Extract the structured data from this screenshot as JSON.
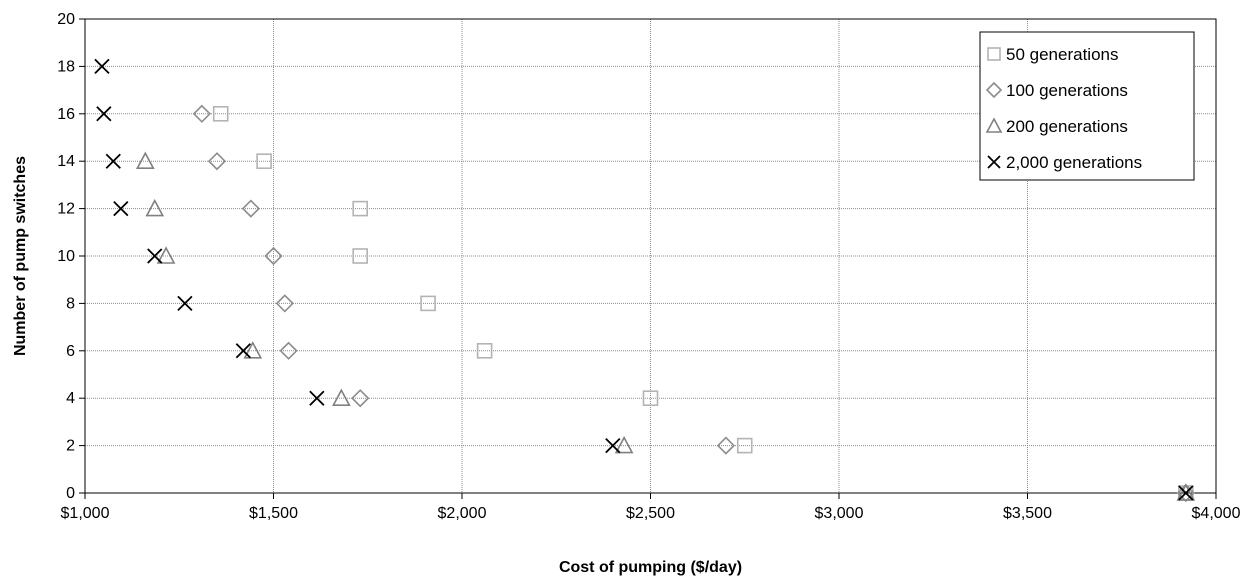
{
  "chart_data": {
    "type": "scatter",
    "xlabel": "Cost of pumping ($/day)",
    "ylabel": "Number of pump switches",
    "xlim": [
      1000,
      4000
    ],
    "ylim": [
      0,
      20
    ],
    "x_ticks": [
      1000,
      1500,
      2000,
      2500,
      3000,
      3500,
      4000
    ],
    "x_tick_labels": [
      "$1,000",
      "$1,500",
      "$2,000",
      "$2,500",
      "$3,000",
      "$3,500",
      "$4,000"
    ],
    "y_ticks": [
      0,
      2,
      4,
      6,
      8,
      10,
      12,
      14,
      16,
      18,
      20
    ],
    "y_tick_labels": [
      "0",
      "2",
      "4",
      "6",
      "8",
      "10",
      "12",
      "14",
      "16",
      "18",
      "20"
    ],
    "grid": true,
    "legend_position": "top-right",
    "series": [
      {
        "name": "50 generations",
        "marker": "square",
        "color": "#b3b3b3",
        "points": [
          [
            1360,
            16
          ],
          [
            1475,
            14
          ],
          [
            1730,
            12
          ],
          [
            1730,
            10
          ],
          [
            1910,
            8
          ],
          [
            2060,
            6
          ],
          [
            2500,
            4
          ],
          [
            2750,
            2
          ],
          [
            3920,
            0
          ]
        ]
      },
      {
        "name": "100 generations",
        "marker": "diamond",
        "color": "#8c8c8c",
        "points": [
          [
            1310,
            16
          ],
          [
            1350,
            14
          ],
          [
            1440,
            12
          ],
          [
            1500,
            10
          ],
          [
            1530,
            8
          ],
          [
            1540,
            6
          ],
          [
            1730,
            4
          ],
          [
            2700,
            2
          ],
          [
            3920,
            0
          ]
        ]
      },
      {
        "name": "200 generations",
        "marker": "triangle",
        "color": "#808080",
        "points": [
          [
            1160,
            14
          ],
          [
            1185,
            12
          ],
          [
            1215,
            10
          ],
          [
            1445,
            6
          ],
          [
            1680,
            4
          ],
          [
            2430,
            2
          ],
          [
            3920,
            0
          ]
        ]
      },
      {
        "name": "2,000 generations",
        "marker": "x",
        "color": "#000000",
        "points": [
          [
            1045,
            18
          ],
          [
            1050,
            16
          ],
          [
            1075,
            14
          ],
          [
            1095,
            12
          ],
          [
            1185,
            10
          ],
          [
            1265,
            8
          ],
          [
            1420,
            6
          ],
          [
            1615,
            4
          ],
          [
            2400,
            2
          ],
          [
            3920,
            0
          ]
        ]
      }
    ]
  }
}
